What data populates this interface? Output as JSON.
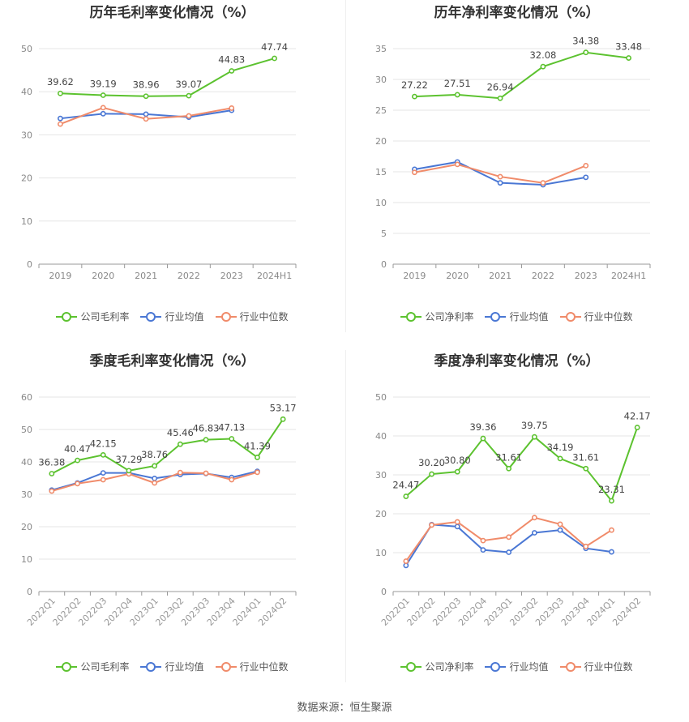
{
  "colors": {
    "company": "#5cc22f",
    "avg": "#4a77d4",
    "median": "#f08b6a",
    "grid": "#e6e6e6",
    "axis": "#999999",
    "label": "#444444"
  },
  "source_text": "数据来源：恒生聚源",
  "chart_data": [
    {
      "type": "line",
      "title": "历年毛利率变化情况（%）",
      "categories": [
        "2019",
        "2020",
        "2021",
        "2022",
        "2023",
        "2024H1"
      ],
      "ylim": [
        0,
        50
      ],
      "yticks": [
        0,
        10,
        20,
        30,
        40,
        50
      ],
      "rotate_x_labels": false,
      "series": [
        {
          "name": "公司毛利率",
          "role": "company",
          "values": [
            39.62,
            39.19,
            38.96,
            39.07,
            44.83,
            47.74
          ],
          "labels": [
            "39.62",
            "39.19",
            "38.96",
            "39.07",
            "44.83",
            "47.74"
          ]
        },
        {
          "name": "行业均值",
          "role": "avg",
          "values": [
            33.8,
            34.9,
            34.8,
            34.1,
            35.7,
            null
          ]
        },
        {
          "name": "行业中位数",
          "role": "median",
          "values": [
            32.5,
            36.3,
            33.7,
            34.4,
            36.2,
            null
          ]
        }
      ]
    },
    {
      "type": "line",
      "title": "历年净利率变化情况（%）",
      "categories": [
        "2019",
        "2020",
        "2021",
        "2022",
        "2023",
        "2024H1"
      ],
      "ylim": [
        0,
        35
      ],
      "yticks": [
        0,
        5,
        10,
        15,
        20,
        25,
        30,
        35
      ],
      "rotate_x_labels": false,
      "series": [
        {
          "name": "公司净利率",
          "role": "company",
          "values": [
            27.22,
            27.51,
            26.94,
            32.08,
            34.38,
            33.48
          ],
          "labels": [
            "27.22",
            "27.51",
            "26.94",
            "32.08",
            "34.38",
            "33.48"
          ]
        },
        {
          "name": "行业均值",
          "role": "avg",
          "values": [
            15.4,
            16.6,
            13.2,
            12.9,
            14.1,
            null
          ]
        },
        {
          "name": "行业中位数",
          "role": "median",
          "values": [
            14.9,
            16.2,
            14.2,
            13.2,
            16.0,
            null
          ]
        }
      ]
    },
    {
      "type": "line",
      "title": "季度毛利率变化情况（%）",
      "categories": [
        "2022Q1",
        "2022Q2",
        "2022Q3",
        "2022Q4",
        "2023Q1",
        "2023Q2",
        "2023Q3",
        "2023Q4",
        "2024Q1",
        "2024Q2"
      ],
      "ylim": [
        0,
        60
      ],
      "yticks": [
        0,
        10,
        20,
        30,
        40,
        50,
        60
      ],
      "rotate_x_labels": true,
      "series": [
        {
          "name": "公司毛利率",
          "role": "company",
          "values": [
            36.38,
            40.47,
            42.15,
            37.29,
            38.76,
            45.46,
            46.83,
            47.13,
            41.39,
            53.17
          ],
          "labels": [
            "36.38",
            "40.47",
            "42.15",
            "37.29",
            "38.76",
            "45.46",
            "46.83",
            "47.13",
            "41.39",
            "53.17"
          ]
        },
        {
          "name": "行业均值",
          "role": "avg",
          "values": [
            31.3,
            33.5,
            36.6,
            36.6,
            34.9,
            36.1,
            36.4,
            35.2,
            37.1,
            null
          ]
        },
        {
          "name": "行业中位数",
          "role": "median",
          "values": [
            31.0,
            33.3,
            34.5,
            36.3,
            33.5,
            36.7,
            36.5,
            34.5,
            36.8,
            null
          ]
        }
      ]
    },
    {
      "type": "line",
      "title": "季度净利率变化情况（%）",
      "categories": [
        "2022Q1",
        "2022Q2",
        "2022Q3",
        "2022Q4",
        "2023Q1",
        "2023Q2",
        "2023Q3",
        "2023Q4",
        "2024Q1",
        "2024Q2"
      ],
      "ylim": [
        0,
        50
      ],
      "yticks": [
        0,
        10,
        20,
        30,
        40,
        50
      ],
      "rotate_x_labels": true,
      "series": [
        {
          "name": "公司净利率",
          "role": "company",
          "values": [
            24.47,
            30.2,
            30.8,
            39.36,
            31.61,
            39.75,
            34.19,
            31.61,
            23.31,
            42.17
          ],
          "labels": [
            "24.47",
            "30.20",
            "30.80",
            "39.36",
            "31.61",
            "39.75",
            "34.19",
            "31.61",
            "23.31",
            "42.17"
          ]
        },
        {
          "name": "行业均值",
          "role": "avg",
          "values": [
            6.7,
            17.2,
            16.7,
            10.7,
            10.1,
            15.1,
            15.8,
            11.1,
            10.2,
            null
          ]
        },
        {
          "name": "行业中位数",
          "role": "median",
          "values": [
            7.8,
            17.1,
            17.9,
            13.1,
            14.0,
            19.0,
            17.3,
            11.6,
            15.8,
            null
          ]
        }
      ]
    }
  ]
}
